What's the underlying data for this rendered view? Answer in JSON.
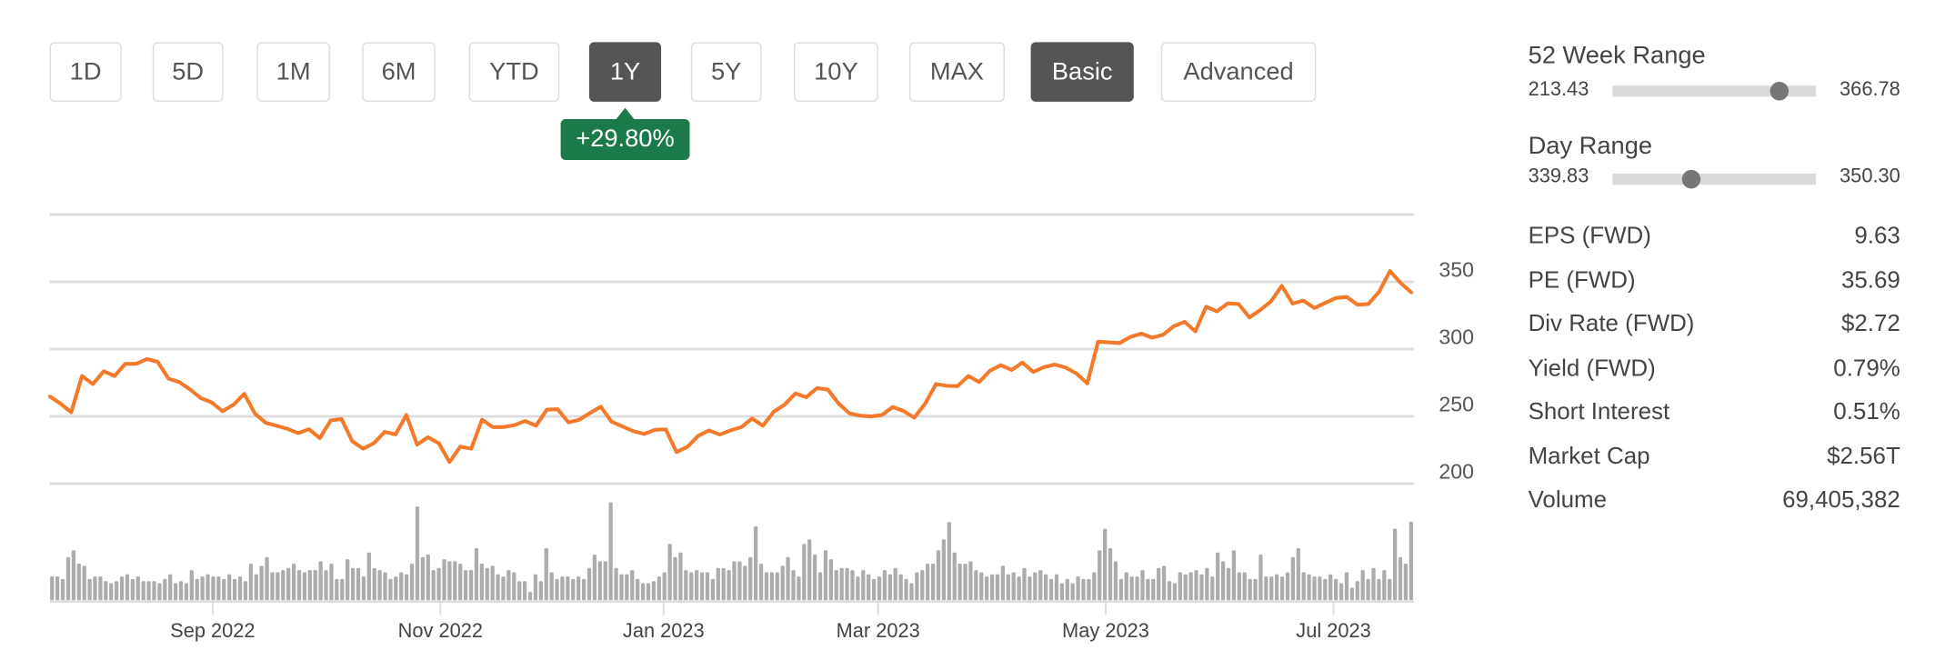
{
  "range_buttons": [
    {
      "label": "1D",
      "active": false
    },
    {
      "label": "5D",
      "active": false
    },
    {
      "label": "1M",
      "active": false
    },
    {
      "label": "6M",
      "active": false
    },
    {
      "label": "YTD",
      "active": false
    },
    {
      "label": "1Y",
      "active": true
    },
    {
      "label": "5Y",
      "active": false
    },
    {
      "label": "10Y",
      "active": false
    },
    {
      "label": "MAX",
      "active": false
    }
  ],
  "view_buttons": [
    {
      "label": "Basic",
      "active": true
    },
    {
      "label": "Advanced",
      "active": false
    }
  ],
  "change_badge": {
    "text": "+29.80%",
    "color": "#1a7a4a"
  },
  "colors": {
    "price_line": "#f47a2a",
    "volume_bar": "#acacac",
    "grid": "#dddddd",
    "active_button": "#555555"
  },
  "ranges": {
    "week52": {
      "title": "52 Week Range",
      "low": "213.43",
      "high": "366.78",
      "position": 0.82
    },
    "day": {
      "title": "Day Range",
      "low": "339.83",
      "high": "350.30",
      "position": 0.386
    }
  },
  "stats": [
    {
      "label": "EPS (FWD)",
      "value": "9.63"
    },
    {
      "label": "PE (FWD)",
      "value": "35.69"
    },
    {
      "label": "Div Rate (FWD)",
      "value": "$2.72"
    },
    {
      "label": "Yield (FWD)",
      "value": "0.79%"
    },
    {
      "label": "Short Interest",
      "value": "0.51%"
    },
    {
      "label": "Market Cap",
      "value": "$2.56T"
    },
    {
      "label": "Volume",
      "value": "69,405,382"
    }
  ],
  "chart_data": {
    "type": "line",
    "ylim": [
      200,
      400
    ],
    "yticks": [
      "200",
      "250",
      "300",
      "350"
    ],
    "grid": true,
    "xticks": [
      "Sep 2022",
      "Nov 2022",
      "Jan 2023",
      "Mar 2023",
      "May 2023",
      "Jul 2023"
    ],
    "price": [
      264.9,
      259.5,
      253,
      280,
      274,
      283.5,
      280,
      289,
      289,
      292.5,
      290.5,
      278,
      275.5,
      270,
      263.5,
      260.4,
      253.8,
      258.5,
      266.7,
      252,
      245.2,
      243,
      240.7,
      237.5,
      240.5,
      233.8,
      247,
      248,
      231.5,
      226,
      230,
      238.4,
      236.6,
      251,
      229,
      234.5,
      230,
      216,
      227.5,
      226,
      247.5,
      242,
      242,
      243.5,
      246.5,
      243,
      255,
      255.3,
      245.5,
      247.5,
      252.5,
      257.1,
      246,
      242.5,
      239,
      237,
      240,
      240.4,
      223.5,
      227.3,
      235.5,
      239.5,
      236.5,
      239.5,
      242,
      248.4,
      243,
      253.5,
      258.7,
      267,
      264.2,
      271,
      270,
      259.5,
      252.2,
      250.5,
      250,
      251,
      257,
      254,
      249,
      259.5,
      274,
      272.7,
      272.4,
      280,
      275.5,
      284,
      288,
      284.5,
      290,
      283,
      286.5,
      288.5,
      286.3,
      281.8,
      274.5,
      305.5,
      305,
      304.5,
      309,
      311.5,
      308.5,
      310.6,
      317,
      320.3,
      313.2,
      331.5,
      328,
      334,
      333.5,
      323.5,
      329,
      335.5,
      347,
      333.8,
      336,
      330.5,
      334.3,
      338,
      338.8,
      333,
      333.5,
      342.7,
      358,
      349,
      342
    ],
    "volume_millions": [
      21.0,
      21.0,
      18.8,
      38.2,
      44.1,
      32.3,
      30.4,
      18.8,
      21.0,
      21.0,
      16.9,
      15.1,
      16.9,
      21.0,
      22.9,
      18.8,
      21.0,
      16.9,
      16.9,
      16.9,
      15.1,
      18.8,
      22.9,
      15.1,
      16.9,
      15.1,
      26.6,
      18.8,
      21.0,
      22.9,
      21.0,
      21.0,
      18.8,
      22.9,
      18.8,
      21.0,
      16.9,
      32.3,
      22.9,
      30.4,
      38.2,
      24.7,
      24.7,
      26.6,
      28.5,
      32.3,
      26.6,
      24.7,
      26.6,
      26.6,
      34.4,
      26.6,
      32.3,
      18.8,
      18.8,
      36.3,
      28.5,
      28.5,
      21.0,
      42.2,
      28.5,
      26.6,
      24.7,
      18.8,
      21.0,
      24.7,
      22.9,
      32.3,
      82.9,
      38.2,
      40.4,
      26.6,
      28.5,
      36.3,
      34.4,
      34.4,
      32.3,
      26.6,
      26.6,
      46.0,
      32.3,
      28.5,
      30.4,
      22.9,
      21.0,
      26.6,
      24.7,
      16.9,
      16.9,
      7.3,
      22.9,
      16.9,
      46.0,
      24.7,
      18.8,
      21.0,
      21.0,
      18.8,
      21.0,
      18.8,
      28.5,
      40.4,
      34.4,
      34.4,
      86.6,
      28.5,
      22.9,
      22.9,
      26.6,
      18.8,
      15.1,
      15.1,
      16.9,
      21.0,
      24.7,
      49.8,
      38.2,
      42.2,
      26.6,
      24.7,
      26.6,
      24.7,
      24.7,
      18.8,
      28.5,
      28.5,
      26.6,
      34.4,
      34.4,
      30.4,
      38.2,
      65.4,
      32.3,
      24.7,
      24.7,
      24.7,
      30.4,
      38.2,
      26.6,
      21.0,
      49.8,
      53.8,
      40.4,
      24.7,
      44.1,
      36.3,
      26.6,
      28.5,
      28.5,
      26.6,
      21.0,
      26.6,
      22.9,
      18.8,
      21.0,
      26.6,
      22.9,
      28.5,
      22.9,
      18.8,
      15.1,
      24.7,
      26.6,
      32.3,
      32.3,
      44.1,
      53.8,
      69.1,
      42.2,
      32.3,
      32.3,
      34.4,
      26.6,
      24.7,
      21.0,
      22.9,
      22.9,
      30.4,
      22.9,
      24.7,
      21.0,
      28.5,
      21.0,
      24.7,
      26.6,
      22.9,
      18.8,
      22.9,
      15.1,
      18.8,
      15.1,
      21.0,
      18.8,
      18.8,
      24.7,
      44.1,
      63.2,
      46.0,
      34.4,
      18.8,
      24.7,
      21.0,
      21.0,
      26.6,
      18.8,
      18.8,
      28.5,
      30.4,
      16.9,
      15.1,
      24.7,
      22.9,
      24.7,
      26.6,
      22.9,
      28.5,
      21.0,
      42.2,
      34.4,
      28.5,
      44.1,
      24.7,
      24.7,
      18.8,
      18.8,
      40.4,
      21.0,
      21.0,
      22.9,
      21.0,
      24.7,
      38.2,
      46.0,
      24.7,
      22.9,
      21.0,
      21.0,
      18.8,
      22.9,
      18.8,
      15.1,
      24.7,
      11.0,
      16.9,
      26.6,
      18.8,
      28.5,
      18.8,
      26.6,
      18.8,
      63.2,
      38.2,
      32.3,
      69.4
    ]
  }
}
